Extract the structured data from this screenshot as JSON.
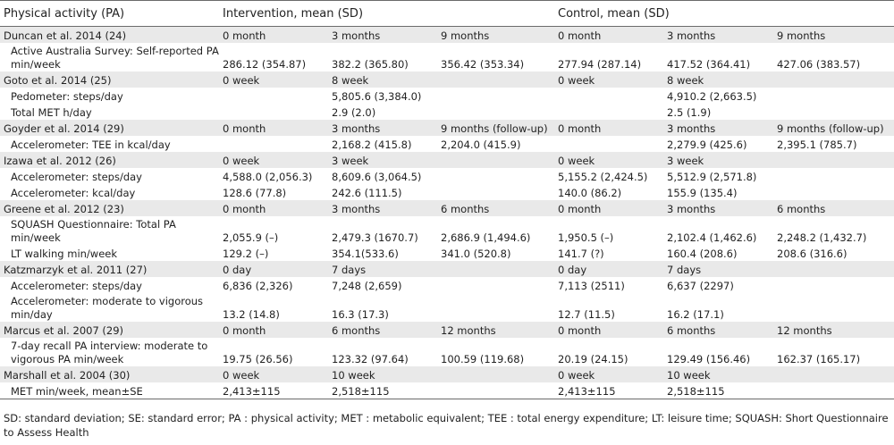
{
  "table": {
    "headers": [
      "Physical activity (PA)",
      "Intervention, mean (SD)",
      "Control, mean (SD)"
    ],
    "rows": [
      {
        "type": "study",
        "cells": [
          "Duncan et al. 2014 (24)",
          "0 month",
          "3 months",
          "9 months",
          "0 month",
          "3 months",
          "9 months"
        ]
      },
      {
        "type": "meas",
        "lines": 2,
        "cells": [
          "Active Australia Survey: Self-reported PA min/week",
          "286.12 (354.87)",
          "382.2 (365.80)",
          "356.42 (353.34)",
          "277.94 (287.14)",
          "417.52 (364.41)",
          "427.06 (383.57)"
        ]
      },
      {
        "type": "study",
        "cells": [
          "Goto et al. 2014 (25)",
          "0 week",
          "8 week",
          "",
          "0 week",
          "8 week",
          ""
        ]
      },
      {
        "type": "meas",
        "lines": 1,
        "cells": [
          "Pedometer: steps/day",
          "",
          "5,805.6 (3,384.0)",
          "",
          "",
          "4,910.2 (2,663.5)",
          ""
        ]
      },
      {
        "type": "meas",
        "lines": 1,
        "cells": [
          "Total MET h/day",
          "",
          "2.9 (2.0)",
          "",
          "",
          "2.5 (1.9)",
          ""
        ]
      },
      {
        "type": "study",
        "cells": [
          "Goyder et al. 2014 (29)",
          "0 month",
          "3 months",
          "9 months (follow-up)",
          "0 month",
          "3 months",
          "9 months (follow-up)"
        ]
      },
      {
        "type": "meas",
        "lines": 1,
        "cells": [
          "Accelerometer: TEE in kcal/day",
          "",
          "2,168.2 (415.8)",
          "2,204.0 (415.9)",
          "",
          "2,279.9 (425.6)",
          "2,395.1 (785.7)"
        ]
      },
      {
        "type": "study",
        "cells": [
          "Izawa et al. 2012 (26)",
          "0 week",
          "3 week",
          "",
          "0 week",
          "3 week",
          ""
        ]
      },
      {
        "type": "meas",
        "lines": 1,
        "cells": [
          "Accelerometer: steps/day",
          "4,588.0 (2,056.3)",
          "8,609.6 (3,064.5)",
          "",
          "5,155.2 (2,424.5)",
          "5,512.9 (2,571.8)",
          ""
        ]
      },
      {
        "type": "meas",
        "lines": 1,
        "cells": [
          "Accelerometer: kcal/day",
          "128.6 (77.8)",
          "242.6 (111.5)",
          "",
          "140.0 (86.2)",
          "155.9 (135.4)",
          ""
        ]
      },
      {
        "type": "study",
        "cells": [
          "Greene et al. 2012 (23)",
          "0 month",
          "3 months",
          "6 months",
          "0 month",
          "3 months",
          "6 months"
        ]
      },
      {
        "type": "meas",
        "lines": 2,
        "cells": [
          "SQUASH Questionnaire: Total PA min/week",
          "2,055.9 (–)",
          "2,479.3 (1670.7)",
          "2,686.9 (1,494.6)",
          "1,950.5 (–)",
          "2,102.4 (1,462.6)",
          "2,248.2 (1,432.7)"
        ]
      },
      {
        "type": "meas",
        "lines": 1,
        "cells": [
          "LT walking min/week",
          "129.2 (–)",
          "354.1(533.6)",
          "341.0 (520.8)",
          "141.7 (?)",
          "160.4 (208.6)",
          "208.6 (316.6)"
        ]
      },
      {
        "type": "study",
        "cells": [
          "Katzmarzyk et al. 2011 (27)",
          "0 day",
          "7 days",
          "",
          "0 day",
          "7 days",
          ""
        ]
      },
      {
        "type": "meas",
        "lines": 1,
        "cells": [
          "Accelerometer: steps/day",
          "6,836 (2,326)",
          "7,248 (2,659)",
          "",
          "7,113 (2511)",
          "6,637 (2297)",
          ""
        ]
      },
      {
        "type": "meas",
        "lines": 2,
        "cells": [
          "Accelerometer: moderate to vigorous min/day",
          "13.2 (14.8)",
          "16.3 (17.3)",
          "",
          "12.7 (11.5)",
          "16.2 (17.1)",
          ""
        ]
      },
      {
        "type": "study",
        "cells": [
          "Marcus et al. 2007 (29)",
          "0 month",
          "6 months",
          "12 months",
          "0 month",
          "6 months",
          "12 months"
        ]
      },
      {
        "type": "meas",
        "lines": 2,
        "cells": [
          "7-day recall PA interview: moderate to vigorous PA min/week",
          "19.75 (26.56)",
          "123.32 (97.64)",
          "100.59 (119.68)",
          "20.19 (24.15)",
          "129.49 (156.46)",
          "162.37 (165.17)"
        ]
      },
      {
        "type": "study",
        "cells": [
          "Marshall et al. 2004 (30)",
          "0 week",
          "10 week",
          "",
          "0 week",
          "10 week",
          ""
        ]
      },
      {
        "type": "meas",
        "lines": 1,
        "cells": [
          "MET min/week, mean±SE",
          "2,413±115",
          "2,518±115",
          "",
          "2,413±115",
          "2,518±115",
          ""
        ]
      }
    ]
  },
  "footnote": "SD: standard deviation; SE: standard error; PA : physical activity; MET : metabolic equivalent; TEE : total energy expenditure; LT: leisure time; SQUASH: Short Questionnaire to Assess Health"
}
